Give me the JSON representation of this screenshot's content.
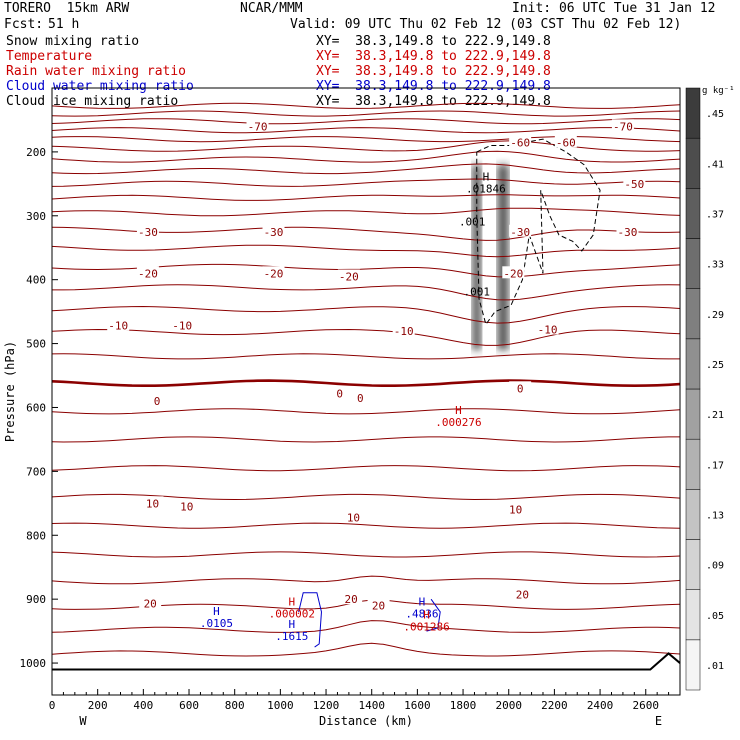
{
  "header": {
    "model": "TORERO  15km ARW",
    "org": "NCAR/MMM",
    "init": "Init: 06 UTC Tue 31 Jan 12",
    "fcst_label": "Fcst:",
    "fcst_value": "51 h",
    "valid": "Valid: 09 UTC Thu 02 Feb 12 (03 CST Thu 02 Feb 12)"
  },
  "fields": [
    {
      "name": "Snow mixing ratio",
      "xy": "XY=  38.3,149.8 to 222.9,149.8",
      "color": "#000000"
    },
    {
      "name": "Temperature",
      "xy": "XY=  38.3,149.8 to 222.9,149.8",
      "color": "#cc0000"
    },
    {
      "name": "Rain water mixing ratio",
      "xy": "XY=  38.3,149.8 to 222.9,149.8",
      "color": "#cc0000"
    },
    {
      "name": "Cloud water mixing ratio",
      "xy": "XY=  38.3,149.8 to 222.9,149.8",
      "color": "#0000cc"
    },
    {
      "name": "Cloud ice mixing ratio",
      "xy": "XY=  38.3,149.8 to 222.9,149.8",
      "color": "#000000"
    }
  ],
  "chart_data": {
    "type": "contour-cross-section",
    "xlabel": "Distance (km)",
    "ylabel": "Pressure (hPa)",
    "xlim": [
      0,
      2750
    ],
    "ylim": [
      1050,
      100
    ],
    "x_ticks": [
      0,
      200,
      400,
      600,
      800,
      1000,
      1200,
      1400,
      1600,
      1800,
      2000,
      2200,
      2400,
      2600
    ],
    "y_ticks": [
      200,
      300,
      400,
      500,
      600,
      700,
      800,
      900,
      1000
    ],
    "x_end_labels": {
      "left": "W",
      "right": "E"
    },
    "colorbar": {
      "unit": "g kg⁻¹",
      "levels": [
        ".01",
        ".05",
        ".09",
        ".13",
        ".17",
        ".21",
        ".25",
        ".29",
        ".33",
        ".37",
        ".41",
        ".45"
      ]
    },
    "temperature_labels": [
      {
        "text": "-70",
        "x": 900,
        "p": 160
      },
      {
        "text": "-70",
        "x": 2500,
        "p": 160
      },
      {
        "text": "-60",
        "x": 2050,
        "p": 185
      },
      {
        "text": "-60",
        "x": 2250,
        "p": 185
      },
      {
        "text": "-50",
        "x": 2550,
        "p": 250
      },
      {
        "text": "-30",
        "x": 420,
        "p": 325
      },
      {
        "text": "-30",
        "x": 970,
        "p": 325
      },
      {
        "text": "-30",
        "x": 2050,
        "p": 325
      },
      {
        "text": "-30",
        "x": 2520,
        "p": 325
      },
      {
        "text": "-20",
        "x": 420,
        "p": 390
      },
      {
        "text": "-20",
        "x": 970,
        "p": 390
      },
      {
        "text": "-20",
        "x": 1300,
        "p": 395
      },
      {
        "text": "-20",
        "x": 2020,
        "p": 390
      },
      {
        "text": "-10",
        "x": 290,
        "p": 472
      },
      {
        "text": "-10",
        "x": 570,
        "p": 472
      },
      {
        "text": "-10",
        "x": 1540,
        "p": 480
      },
      {
        "text": "-10",
        "x": 2170,
        "p": 478
      },
      {
        "text": "0",
        "x": 460,
        "p": 590
      },
      {
        "text": "0",
        "x": 1260,
        "p": 578
      },
      {
        "text": "0",
        "x": 1350,
        "p": 585
      },
      {
        "text": "0",
        "x": 2050,
        "p": 570
      },
      {
        "text": "10",
        "x": 440,
        "p": 750
      },
      {
        "text": "10",
        "x": 590,
        "p": 755
      },
      {
        "text": "10",
        "x": 1320,
        "p": 772
      },
      {
        "text": "10",
        "x": 2030,
        "p": 760
      },
      {
        "text": "20",
        "x": 430,
        "p": 907
      },
      {
        "text": "20",
        "x": 1310,
        "p": 900
      },
      {
        "text": "20",
        "x": 1430,
        "p": 910
      },
      {
        "text": "20",
        "x": 2060,
        "p": 893
      }
    ],
    "extrema_labels": [
      {
        "text": "H",
        "value": ".000276",
        "x": 1780,
        "p": 610,
        "color": "#cc0000"
      },
      {
        "text": "H",
        "value": ".01846",
        "x": 1900,
        "p": 245,
        "color": "#000000"
      },
      {
        "text": "H",
        "value": ".0105",
        "x": 720,
        "p": 925,
        "color": "#0000cc"
      },
      {
        "text": "H",
        "value": ".000002",
        "x": 1050,
        "p": 910,
        "color": "#cc0000"
      },
      {
        "text": "H",
        "value": ".1615",
        "x": 1050,
        "p": 945,
        "color": "#0000cc"
      },
      {
        "text": "H",
        "value": ".4836",
        "x": 1620,
        "p": 910,
        "color": "#0000cc"
      },
      {
        "text": "H",
        "value": ".001286",
        "x": 1640,
        "p": 930,
        "color": "#cc0000"
      }
    ],
    "snow_labels": [
      {
        "text": ".001",
        "x": 1840,
        "p": 315
      },
      {
        "text": ".001",
        "x": 1860,
        "p": 425
      }
    ]
  }
}
